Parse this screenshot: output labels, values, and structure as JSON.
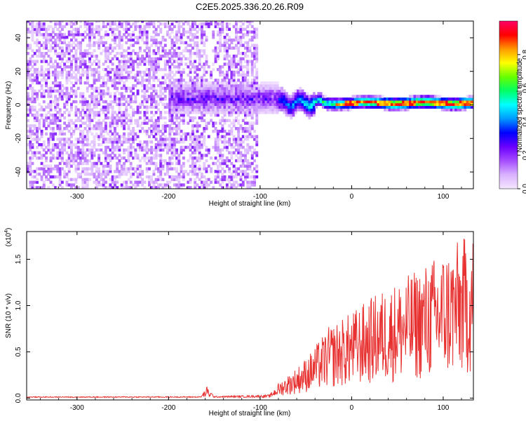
{
  "figure": {
    "title": "C2E5.2025.336.20.26.R09"
  },
  "chart_data": [
    {
      "type": "heatmap",
      "name": "spectrogram",
      "xlabel": "Height of straight line (km)",
      "ylabel": "Frequency (Hz)",
      "xlim": [
        -355,
        133
      ],
      "ylim": [
        -50,
        50
      ],
      "xticks": [
        -300,
        -200,
        -100,
        0,
        100
      ],
      "xtick_labels": [
        "-300",
        "-200",
        "-100",
        "0",
        "100"
      ],
      "yticks": [
        -40,
        -20,
        0,
        20,
        40
      ],
      "ytick_labels": [
        "-40",
        "-20",
        "0",
        "20",
        "40"
      ],
      "colorbar": {
        "label": "Normalized spectral amplitude",
        "range": [
          0,
          1
        ],
        "ticks": [
          0.0,
          0.2,
          0.4,
          0.6,
          0.8
        ],
        "tick_labels": [
          "0.0",
          "0.2",
          "0.4",
          "0.6",
          "0.8"
        ],
        "colors": [
          "#f5e6ff",
          "#d9b3ff",
          "#a64dff",
          "#6a00ff",
          "#0000ff",
          "#0099ff",
          "#00ffff",
          "#00ff66",
          "#66ff00",
          "#ffff00",
          "#ff9900",
          "#ff0000",
          "#ff0066"
        ]
      },
      "regions": [
        {
          "name": "broadband noise",
          "x_range": [
            -355,
            -105
          ],
          "freq_range": [
            -50,
            50
          ],
          "amplitude": 0.05
        },
        {
          "name": "onset band",
          "x_range": [
            -200,
            -80
          ],
          "freq_center": 3,
          "freq_halfwidth": 10,
          "amplitude": 0.15
        },
        {
          "name": "signal band",
          "x_range": [
            -80,
            133
          ],
          "freq_center": 0.5,
          "freq_halfwidth": 4,
          "amplitude": 0.7
        }
      ]
    },
    {
      "type": "line",
      "name": "snr",
      "xlabel": "Height of straight line (km)",
      "ylabel": "SNR (10 * v/v)",
      "scale_label": "(x10",
      "scale_exponent": "4",
      "xlim": [
        -355,
        133
      ],
      "ylim": [
        -200,
        18000
      ],
      "xticks": [
        -300,
        -200,
        -100,
        0,
        100
      ],
      "xtick_labels": [
        "-300",
        "-200",
        "-100",
        "0",
        "100"
      ],
      "yticks": [
        0,
        5000,
        10000,
        15000
      ],
      "ytick_labels": [
        "0.0",
        "0.5",
        "1.0",
        "1.5"
      ],
      "color": "#e83232",
      "envelope": [
        {
          "x": -355,
          "y": 100
        },
        {
          "x": -165,
          "y": 120
        },
        {
          "x": -158,
          "y": 1200
        },
        {
          "x": -150,
          "y": 150
        },
        {
          "x": -90,
          "y": 300
        },
        {
          "x": -80,
          "y": 1500
        },
        {
          "x": -60,
          "y": 3000
        },
        {
          "x": -45,
          "y": 4500
        },
        {
          "x": -25,
          "y": 7000
        },
        {
          "x": 0,
          "y": 8500
        },
        {
          "x": 30,
          "y": 10500
        },
        {
          "x": 60,
          "y": 12000
        },
        {
          "x": 100,
          "y": 14500
        },
        {
          "x": 133,
          "y": 16500
        }
      ]
    }
  ]
}
